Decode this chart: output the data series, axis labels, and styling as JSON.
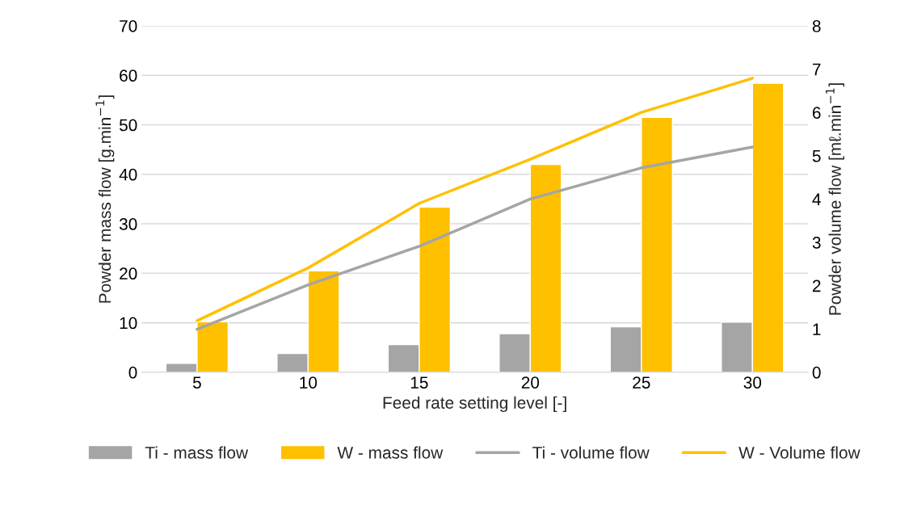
{
  "chart_data": {
    "type": "bar",
    "xlabel": "Feed rate setting level [-]",
    "ylabel": "Powder mass flow [g.min$^{−1}$]",
    "y2label": "Powder volume flow [mℓ.min$^{−1}$]",
    "categories": [
      "5",
      "10",
      "15",
      "20",
      "25",
      "30"
    ],
    "series": [
      {
        "name": "Ti - mass flow",
        "color": "#a5a5a5",
        "values": [
          1.8,
          3.8,
          5.6,
          7.8,
          9.2,
          10.1
        ]
      },
      {
        "name": "W - mass flow",
        "color": "#ffc000",
        "values": [
          10.2,
          20.5,
          33.4,
          42.0,
          51.5,
          58.4
        ]
      },
      {
        "name": "Ti - volume flow",
        "type": "line",
        "axis": "y2",
        "color": "#a5a5a5",
        "values": [
          0.99,
          2.02,
          2.91,
          4.0,
          4.72,
          5.2
        ]
      },
      {
        "name": "W - Volume flow",
        "type": "line",
        "axis": "y2",
        "color": "#ffc000",
        "values": [
          1.19,
          2.41,
          3.9,
          4.92,
          6.0,
          6.79
        ]
      }
    ],
    "ylim": [
      0,
      70
    ],
    "yticks": [
      0,
      10,
      20,
      30,
      40,
      50,
      60,
      70
    ],
    "y2lim": [
      0,
      8
    ],
    "y2ticks": [
      0,
      1,
      2,
      3,
      4,
      5,
      6,
      7,
      8
    ],
    "grid": "y",
    "legend": "bottom",
    "marker": "none",
    "line_style": "solid"
  }
}
